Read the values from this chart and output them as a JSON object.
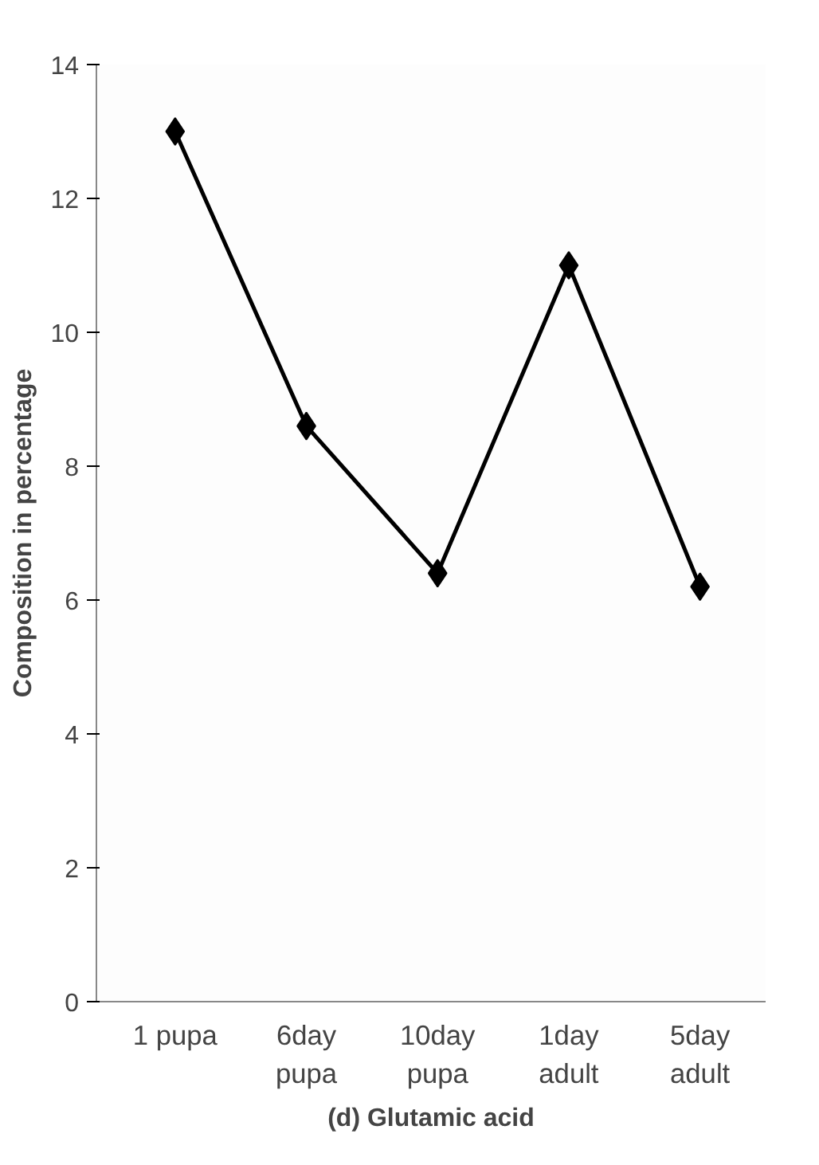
{
  "chart_data": {
    "type": "line",
    "title": "(d) Glutamic acid",
    "ylabel": "Composition in percentage",
    "categories": [
      "1 pupa",
      "6day\npupa",
      "10day\npupa",
      "1day\nadult",
      "5day\nadult"
    ],
    "series": [
      {
        "color": "#000000",
        "values": [
          13.0,
          8.6,
          6.4,
          11.0,
          6.2
        ]
      }
    ],
    "ylim": [
      0,
      14
    ],
    "yticks": [
      0,
      2,
      4,
      6,
      8,
      10,
      12,
      14
    ],
    "grid": false,
    "marker": "diamond",
    "line_style": "solid"
  }
}
